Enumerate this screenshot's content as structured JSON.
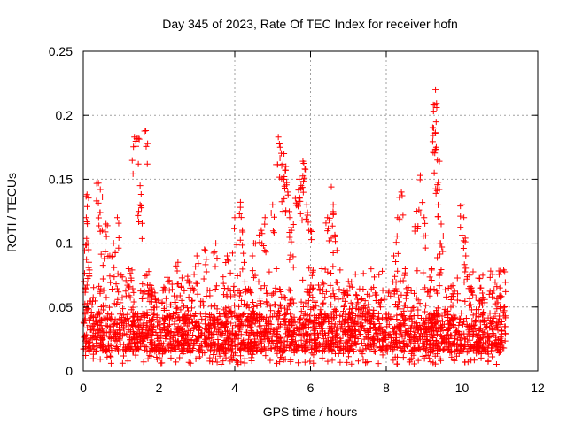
{
  "chart_data": {
    "type": "scatter",
    "title": "Day 345 of 2023, Rate Of TEC Index for receiver hofn",
    "xlabel": "GPS time / hours",
    "ylabel": "ROTI / TECUs",
    "xlim": [
      0,
      12
    ],
    "ylim": [
      0,
      0.25
    ],
    "xticks": [
      0,
      2,
      4,
      6,
      8,
      10,
      12
    ],
    "xtick_labels": [
      "0",
      "2",
      "4",
      "6",
      "8",
      "10",
      "12"
    ],
    "yticks": [
      0,
      0.05,
      0.1,
      0.15,
      0.2,
      0.25
    ],
    "ytick_labels": [
      "0",
      "0.05",
      "0.1",
      "0.15",
      "0.2",
      "0.25"
    ],
    "grid": true,
    "marker": "+",
    "color": "#ff0000",
    "series": [
      {
        "name": "ROTI",
        "x_range": [
          0.0,
          11.15
        ],
        "background_band": [
          0.015,
          0.045
        ],
        "points": [
          [
            0.05,
            0.065
          ],
          [
            0.08,
            0.12
          ],
          [
            0.1,
            0.138
          ],
          [
            0.12,
            0.1
          ],
          [
            0.15,
            0.085
          ],
          [
            0.4,
            0.147
          ],
          [
            0.45,
            0.142
          ],
          [
            0.5,
            0.11
          ],
          [
            0.6,
            0.115
          ],
          [
            0.7,
            0.09
          ],
          [
            0.8,
            0.1
          ],
          [
            0.9,
            0.12
          ],
          [
            1.0,
            0.075
          ],
          [
            1.2,
            0.08
          ],
          [
            1.35,
            0.183
          ],
          [
            1.45,
            0.182
          ],
          [
            1.5,
            0.145
          ],
          [
            1.5,
            0.13
          ],
          [
            1.65,
            0.188
          ],
          [
            1.8,
            0.065
          ],
          [
            2.5,
            0.085
          ],
          [
            2.8,
            0.07
          ],
          [
            3.0,
            0.09
          ],
          [
            3.2,
            0.095
          ],
          [
            3.5,
            0.1
          ],
          [
            3.8,
            0.09
          ],
          [
            4.0,
            0.12
          ],
          [
            4.15,
            0.132
          ],
          [
            4.2,
            0.11
          ],
          [
            4.5,
            0.1
          ],
          [
            4.7,
            0.11
          ],
          [
            4.8,
            0.12
          ],
          [
            5.0,
            0.13
          ],
          [
            5.15,
            0.183
          ],
          [
            5.2,
            0.175
          ],
          [
            5.3,
            0.17
          ],
          [
            5.35,
            0.16
          ],
          [
            5.3,
            0.15
          ],
          [
            5.4,
            0.14
          ],
          [
            5.45,
            0.12
          ],
          [
            5.5,
            0.11
          ],
          [
            5.6,
            0.135
          ],
          [
            5.7,
            0.15
          ],
          [
            5.75,
            0.145
          ],
          [
            5.8,
            0.164
          ],
          [
            5.85,
            0.158
          ],
          [
            5.9,
            0.13
          ],
          [
            6.0,
            0.11
          ],
          [
            6.3,
            0.08
          ],
          [
            6.45,
            0.12
          ],
          [
            6.55,
            0.144
          ],
          [
            6.6,
            0.13
          ],
          [
            6.65,
            0.105
          ],
          [
            7.0,
            0.07
          ],
          [
            7.5,
            0.06
          ],
          [
            8.2,
            0.09
          ],
          [
            8.3,
            0.12
          ],
          [
            8.4,
            0.14
          ],
          [
            8.5,
            0.08
          ],
          [
            8.8,
            0.125
          ],
          [
            8.9,
            0.153
          ],
          [
            9.0,
            0.12
          ],
          [
            9.2,
            0.08
          ],
          [
            9.25,
            0.19
          ],
          [
            9.28,
            0.208
          ],
          [
            9.3,
            0.22
          ],
          [
            9.32,
            0.175
          ],
          [
            9.35,
            0.165
          ],
          [
            9.4,
            0.142
          ],
          [
            9.45,
            0.115
          ],
          [
            9.4,
            0.1
          ],
          [
            10.0,
            0.13
          ],
          [
            10.05,
            0.12
          ],
          [
            10.1,
            0.09
          ],
          [
            10.2,
            0.075
          ],
          [
            10.5,
            0.065
          ],
          [
            11.0,
            0.065
          ],
          [
            11.1,
            0.079
          ]
        ]
      }
    ]
  }
}
